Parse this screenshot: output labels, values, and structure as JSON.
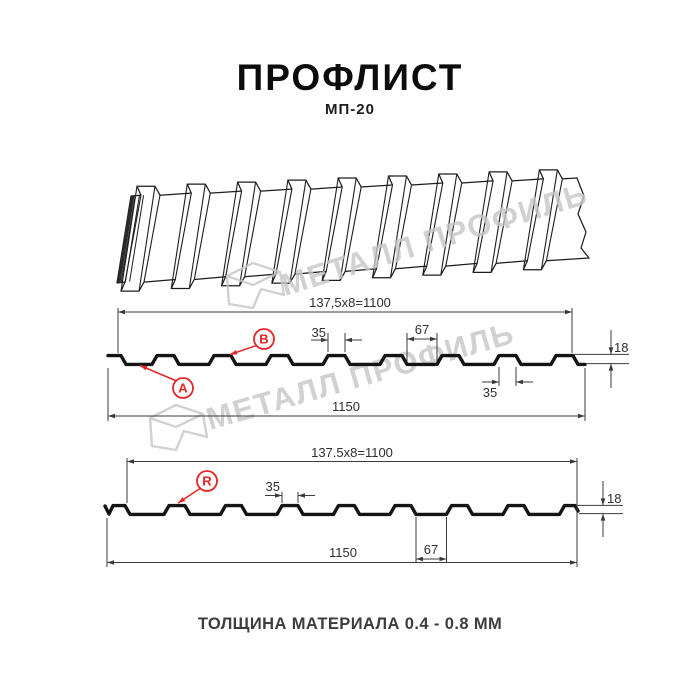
{
  "page": {
    "title": "ПРОФЛИСТ",
    "subtitle": "МП-20",
    "footer": "ТОЛЩИНА МАТЕРИАЛА 0.4 - 0.8 ММ"
  },
  "watermark": {
    "text": "МЕТАЛЛ ПРОФИЛЬ",
    "logo": "metall-profil-crystal"
  },
  "colors": {
    "red": "#e52528",
    "dim_line": "#3b3b3b",
    "dim_text": "#2f2f2f",
    "profile": "#141414",
    "watermark": "#c6c6c6",
    "background": "#ffffff"
  },
  "profiles": [
    {
      "id": "top",
      "markers": [
        "A",
        "B"
      ],
      "dims": {
        "pitch": "137,5x8=1100",
        "crest": "35",
        "valley": "67",
        "height": "18",
        "total": "1150",
        "crest_bottom": "35"
      }
    },
    {
      "id": "bottom",
      "markers": [
        "R"
      ],
      "dims": {
        "pitch": "137.5x8=1100",
        "crest": "35",
        "valley": "67",
        "height": "18",
        "total": "1150"
      }
    }
  ]
}
